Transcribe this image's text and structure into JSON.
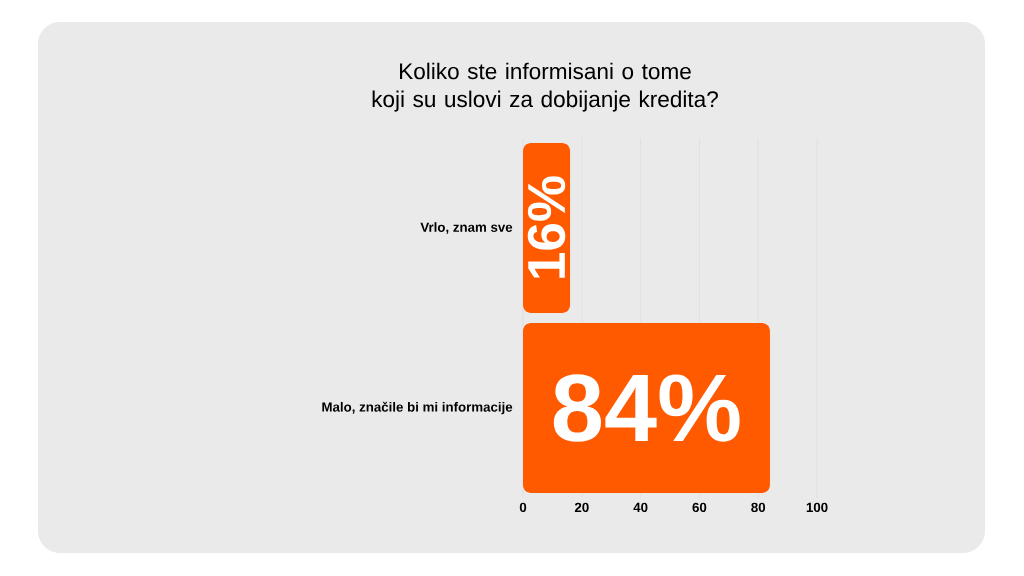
{
  "chart_data": {
    "type": "bar",
    "orientation": "horizontal",
    "title": "Koliko ste informisani o tome\nkoji su uslovi za dobijanje kredita?",
    "categories": [
      "Vrlo, znam sve",
      "Malo, značile bi mi informacije"
    ],
    "values": [
      16,
      84
    ],
    "value_labels": [
      "16%",
      "84%"
    ],
    "color": "#ff5a00",
    "xlim": [
      0,
      100
    ],
    "xticks": [
      0,
      20,
      40,
      60,
      80,
      100
    ],
    "grid": "x"
  }
}
